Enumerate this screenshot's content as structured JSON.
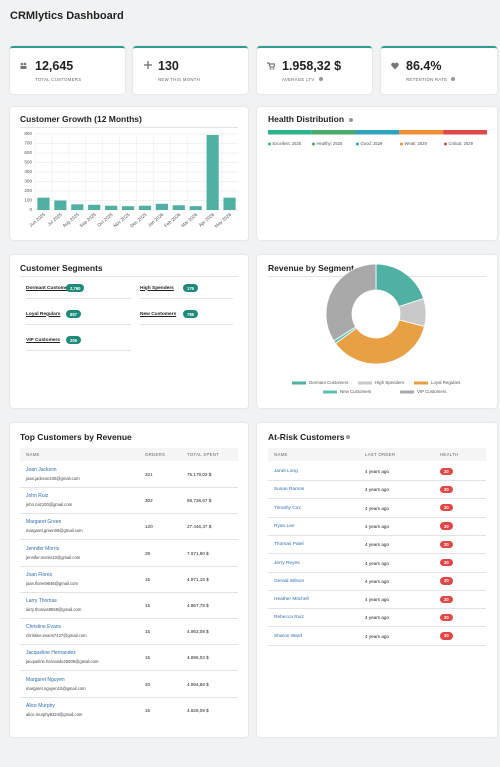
{
  "header": {
    "title": "CRMlytics Dashboard"
  },
  "kpis": [
    {
      "value": "12,645",
      "label": "TOTAL CUSTOMERS"
    },
    {
      "value": "130",
      "label": "NEW THIS MONTH"
    },
    {
      "value": "1.958,32 $",
      "label": "AVERAGE LTV"
    },
    {
      "value": "86.4%",
      "label": "RETENTION RATE"
    }
  ],
  "chart_data": [
    {
      "type": "bar",
      "title": "Customer Growth (12 Months)",
      "categories": [
        "Jun 2025",
        "Jul 2025",
        "Aug 2025",
        "Sep 2025",
        "Oct 2025",
        "Nov 2025",
        "Dec 2025",
        "Jan 2026",
        "Feb 2026",
        "Mar 2026",
        "Apr 2026",
        "May 2026"
      ],
      "values": [
        130,
        100,
        60,
        55,
        45,
        40,
        45,
        65,
        50,
        40,
        790,
        130
      ],
      "color": "#4fb0a3",
      "ylim": [
        0,
        800
      ],
      "yticks": [
        0,
        100,
        200,
        300,
        400,
        500,
        600,
        700,
        800
      ],
      "grid": true
    },
    {
      "type": "stacked-bar",
      "title": "Health Distribution",
      "series": [
        {
          "name": "Excellent: 2525",
          "color": "#2bb58a",
          "values": [
            2525
          ]
        },
        {
          "name": "Healthy: 2525",
          "color": "#4aaa6a",
          "values": [
            2525
          ]
        },
        {
          "name": "Good: 2529",
          "color": "#2ea3c0",
          "values": [
            2529
          ]
        },
        {
          "name": "Weak: 2529",
          "color": "#ef8c35",
          "values": [
            2529
          ]
        },
        {
          "name": "Critical: 2529",
          "color": "#e04848",
          "values": [
            2529
          ]
        }
      ]
    },
    {
      "type": "pie",
      "title": "Revenue by Segment",
      "categories": [
        "Dormant Customers",
        "High Spenders",
        "Loyal Regulars",
        "New Customers",
        "VIP Customers"
      ],
      "values": [
        20,
        9,
        36,
        1,
        34
      ],
      "colors": [
        "#4fb0a3",
        "#c9c9c9",
        "#e8a045",
        "#5fbfb0",
        "#a9a9a9"
      ]
    }
  ],
  "segments": {
    "title": "Customer Segments",
    "items": [
      {
        "name": "Dormant Customers",
        "count": "2,760"
      },
      {
        "name": "High Spenders",
        "count": "175"
      },
      {
        "name": "Loyal Regulars",
        "count": "857"
      },
      {
        "name": "New Customers",
        "count": "786"
      },
      {
        "name": "VIP Customers",
        "count": "205"
      }
    ]
  },
  "top_customers": {
    "title": "Top Customers by Revenue",
    "columns": [
      "NAME",
      "ORDERS",
      "TOTAL SPENT"
    ],
    "rows": [
      [
        "Joan Jackson",
        "joan.jackson100@gmail.com",
        "321",
        "75.179,03 $"
      ],
      [
        "John Ruiz",
        "john.ruiz100@gmail.com",
        "302",
        "68.736,67 $"
      ],
      [
        "Margaret Green",
        "margaret.green00@gmail.com",
        "120",
        "27.446,37 $"
      ],
      [
        "Jennifer Morris",
        "jennifer.morris10@gmail.com",
        "29",
        "7.971,90 $"
      ],
      [
        "Joan Flores",
        "joan.flores9646@gmail.com",
        "15",
        "4.971,15 $"
      ],
      [
        "Larry Thomas",
        "larry.thomas8559@gmail.com",
        "15",
        "4.967,78 $"
      ],
      [
        "Christine Evans",
        "christine.evans7427@gmail.com",
        "15",
        "4.953,08 $"
      ],
      [
        "Jacqueline Hernandez",
        "jacqueline.hernandez5909@gmail.com",
        "15",
        "4.896,03 $"
      ],
      [
        "Margaret Nguyen",
        "margaret.nguyen10@gmail.com",
        "20",
        "4.894,88 $"
      ],
      [
        "Alice Murphy",
        "alice.murphy8324@gmail.com",
        "15",
        "4.826,09 $"
      ]
    ]
  },
  "at_risk": {
    "title": "At-Risk Customers",
    "columns": [
      "NAME",
      "LAST ORDER",
      "HEALTH"
    ],
    "rows": [
      [
        "Janet Long",
        "4 years ago",
        "20"
      ],
      [
        "Susan Ramos",
        "4 years ago",
        "20"
      ],
      [
        "Timothy Cox",
        "4 years ago",
        "20"
      ],
      [
        "Ryan Lee",
        "4 years ago",
        "20"
      ],
      [
        "Thomas Patel",
        "4 years ago",
        "20"
      ],
      [
        "Jerry Reyes",
        "4 years ago",
        "20"
      ],
      [
        "Gerald Wilson",
        "4 years ago",
        "20"
      ],
      [
        "Heather Mitchell",
        "4 years ago",
        "20"
      ],
      [
        "Rebecca Ruiz",
        "4 years ago",
        "20"
      ],
      [
        "Sharon Ward",
        "4 years ago",
        "20"
      ]
    ]
  }
}
